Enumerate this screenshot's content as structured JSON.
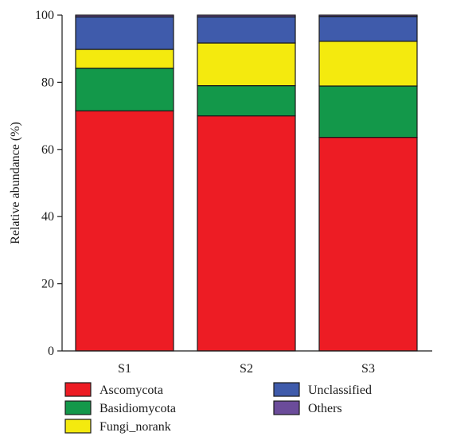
{
  "chart_data": {
    "type": "bar",
    "stacked": true,
    "categories": [
      "S1",
      "S2",
      "S3"
    ],
    "ylabel": "Relative abundance (%)",
    "xlabel": "",
    "ylim": [
      0,
      100
    ],
    "yticks": [
      0,
      20,
      40,
      60,
      80,
      100
    ],
    "legend_position": "bottom",
    "series": [
      {
        "name": "Ascomycota",
        "color": "#ed1c24",
        "values": [
          71.5,
          70.0,
          63.6
        ]
      },
      {
        "name": "Basidiomycota",
        "color": "#13984a",
        "values": [
          12.7,
          9.0,
          15.3
        ]
      },
      {
        "name": "Fungi_norank",
        "color": "#f4ea0e",
        "values": [
          5.6,
          12.7,
          13.3
        ]
      },
      {
        "name": "Unclassified",
        "color": "#3f5bab",
        "values": [
          9.7,
          7.8,
          7.4
        ]
      },
      {
        "name": "Others",
        "color": "#6b4c9a",
        "values": [
          0.5,
          0.5,
          0.4
        ]
      }
    ]
  }
}
